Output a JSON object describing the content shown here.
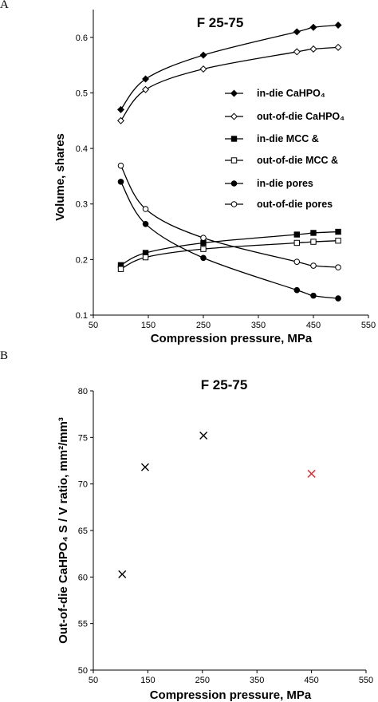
{
  "chart_data": [
    {
      "panel_label": "A",
      "type": "line",
      "title": "F 25-75",
      "xlabel": "Compression pressure, MPa",
      "ylabel": "Volume, shares",
      "xlim": [
        50,
        550
      ],
      "ylim": [
        0.1,
        0.65
      ],
      "xticks": [
        50,
        150,
        250,
        350,
        450,
        550
      ],
      "yticks": [
        0.1,
        0.2,
        0.3,
        0.4,
        0.5,
        0.6
      ],
      "grid": false,
      "legend_position": "right",
      "series": [
        {
          "name": "in-die CaHPO₄",
          "marker": "diamond",
          "filled": true,
          "x": [
            100,
            145,
            250,
            420,
            450,
            495
          ],
          "y": [
            0.47,
            0.525,
            0.568,
            0.61,
            0.618,
            0.622
          ]
        },
        {
          "name": "out-of-die CaHPO₄",
          "marker": "diamond",
          "filled": false,
          "x": [
            100,
            145,
            250,
            420,
            450,
            495
          ],
          "y": [
            0.45,
            0.506,
            0.543,
            0.574,
            0.579,
            0.582
          ]
        },
        {
          "name": "in-die MCC &",
          "marker": "square",
          "filled": true,
          "x": [
            100,
            145,
            250,
            420,
            450,
            495
          ],
          "y": [
            0.19,
            0.212,
            0.23,
            0.245,
            0.248,
            0.25
          ]
        },
        {
          "name": "out-of-die MCC &",
          "marker": "square",
          "filled": false,
          "x": [
            100,
            145,
            250,
            420,
            450,
            495
          ],
          "y": [
            0.183,
            0.204,
            0.219,
            0.23,
            0.232,
            0.234
          ]
        },
        {
          "name": "in-die pores",
          "marker": "circle",
          "filled": true,
          "x": [
            100,
            145,
            250,
            420,
            450,
            495
          ],
          "y": [
            0.34,
            0.264,
            0.203,
            0.145,
            0.135,
            0.13
          ]
        },
        {
          "name": "out-of-die pores",
          "marker": "circle",
          "filled": false,
          "x": [
            100,
            145,
            250,
            420,
            450,
            495
          ],
          "y": [
            0.369,
            0.291,
            0.239,
            0.196,
            0.189,
            0.186
          ]
        }
      ]
    },
    {
      "panel_label": "B",
      "type": "scatter",
      "title": "F 25-75",
      "xlabel": "Compression pressure, MPa",
      "ylabel": "Out-of-die  CaHPO₄  S / V ratio, mm²/mm³",
      "xlim": [
        50,
        550
      ],
      "ylim": [
        50,
        80
      ],
      "xticks": [
        50,
        150,
        250,
        350,
        450,
        550
      ],
      "yticks": [
        50,
        55,
        60,
        65,
        70,
        75,
        80
      ],
      "grid": false,
      "points": [
        {
          "x": 103,
          "y": 60.3,
          "color": "#000000"
        },
        {
          "x": 145,
          "y": 71.8,
          "color": "#000000"
        },
        {
          "x": 252,
          "y": 75.2,
          "color": "#000000"
        },
        {
          "x": 450,
          "y": 71.1,
          "color": "#e8202a"
        }
      ]
    }
  ]
}
